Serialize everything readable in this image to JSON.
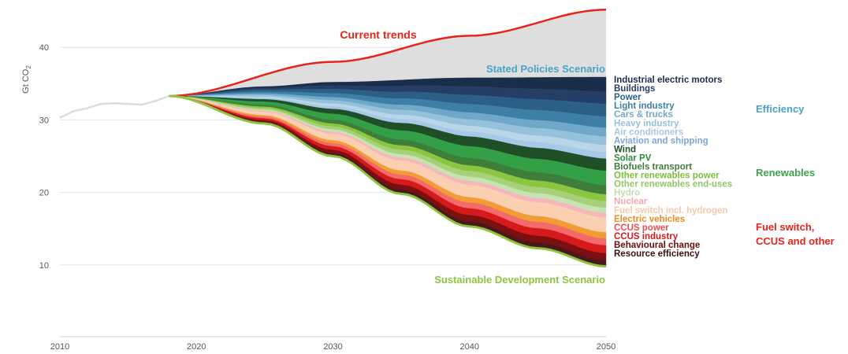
{
  "chart_data": {
    "type": "area",
    "ylabel": "Gt CO",
    "ylabel_subscript": "2",
    "xlim": [
      2010,
      2050
    ],
    "ylim": [
      0,
      46
    ],
    "x_ticks": [
      2010,
      2020,
      2030,
      2040,
      2050
    ],
    "y_ticks": [
      10,
      20,
      30,
      40
    ],
    "grid": "horizontal",
    "history": {
      "x": [
        2010,
        2011,
        2012,
        2013,
        2014,
        2015,
        2016,
        2017,
        2018
      ],
      "y": [
        30.3,
        31.2,
        31.6,
        32.2,
        32.3,
        32.2,
        32.1,
        32.6,
        33.3
      ]
    },
    "current_trends": {
      "name": "Current trends",
      "color": "#e8231b",
      "x": [
        2018,
        2030,
        2040,
        2050
      ],
      "y": [
        33.3,
        38.0,
        41.6,
        45.2
      ]
    },
    "stated_policies": {
      "name": "Stated Policies Scenario",
      "color": "#4aa3c8",
      "x": [
        2018,
        2025,
        2030,
        2040,
        2050
      ],
      "y": [
        33.3,
        34.6,
        35.2,
        35.8,
        35.9
      ]
    },
    "sustainable_development": {
      "name": "Sustainable Development Scenario",
      "color": "#8cc63f",
      "x": [
        2018,
        2025,
        2030,
        2035,
        2040,
        2045,
        2050
      ],
      "y": [
        33.3,
        29.5,
        25.0,
        19.8,
        15.3,
        12.3,
        9.8
      ]
    },
    "series": [
      {
        "name": "Industrial electric motors",
        "group": "Efficiency",
        "color": "#1a2d4a",
        "value_2050": 0.8
      },
      {
        "name": "Buildings",
        "group": "Efficiency",
        "color": "#243e66",
        "value_2050": 1.0
      },
      {
        "name": "Power",
        "group": "Efficiency",
        "color": "#2c5f86",
        "value_2050": 1.2
      },
      {
        "name": "Light industry",
        "group": "Efficiency",
        "color": "#3e7fa6",
        "value_2050": 1.2
      },
      {
        "name": "Cars & trucks",
        "group": "Efficiency",
        "color": "#6fa8c8",
        "value_2050": 1.0
      },
      {
        "name": "Heavy industry",
        "group": "Efficiency",
        "color": "#95c1da",
        "value_2050": 1.0
      },
      {
        "name": "Air conditioners",
        "group": "Efficiency",
        "color": "#b8d6e8",
        "value_2050": 0.9
      },
      {
        "name": "Aviation and shipping",
        "group": "Efficiency",
        "color": "#a7c8e6",
        "value_2050": 0.8
      },
      {
        "name": "Wind",
        "group": "Renewables",
        "color": "#1f4f27",
        "value_2050": 1.6
      },
      {
        "name": "Solar PV",
        "group": "Renewables",
        "color": "#33a047",
        "value_2050": 2.0
      },
      {
        "name": "Biofuels transport",
        "group": "Renewables",
        "color": "#3e7d3a",
        "value_2050": 1.3
      },
      {
        "name": "Other renewables power",
        "group": "Renewables",
        "color": "#8cc63f",
        "value_2050": 1.0
      },
      {
        "name": "Other renewables end-uses",
        "group": "Renewables",
        "color": "#a6d17a",
        "value_2050": 1.0
      },
      {
        "name": "Hydro",
        "group": "Renewables",
        "color": "#c7e3b1",
        "value_2050": 0.8
      },
      {
        "name": "Nuclear",
        "group": "Fuel switch, CCUS and other",
        "color": "#f6b6bc",
        "value_2050": 0.7
      },
      {
        "name": "Fuel switch incl. hydrogen",
        "group": "Fuel switch, CCUS and other",
        "color": "#fbd0b0",
        "value_2050": 2.3
      },
      {
        "name": "Electric vehicles",
        "group": "Fuel switch, CCUS and other",
        "color": "#f39c35",
        "value_2050": 1.0
      },
      {
        "name": "CCUS power",
        "group": "Fuel switch, CCUS and other",
        "color": "#f26a6a",
        "value_2050": 1.1
      },
      {
        "name": "CCUS industry",
        "group": "Fuel switch, CCUS and other",
        "color": "#d7191c",
        "value_2050": 1.3
      },
      {
        "name": "Behavioural change",
        "group": "Fuel switch, CCUS and other",
        "color": "#7b1010",
        "value_2050": 1.2
      },
      {
        "name": "Resource efficiency",
        "group": "Fuel switch, CCUS and other",
        "color": "#4a1818",
        "value_2050": 1.0
      }
    ],
    "groups": [
      {
        "name": "Efficiency",
        "lines": [
          "Efficiency"
        ],
        "color": "#4aa3c8"
      },
      {
        "name": "Renewables",
        "lines": [
          "Renewables"
        ],
        "color": "#3fa34d"
      },
      {
        "name": "Fuel switch, CCUS and other",
        "lines": [
          "Fuel switch,",
          "CCUS and other"
        ],
        "color": "#e8231b"
      }
    ],
    "gap_fill_color": "#dedede"
  }
}
